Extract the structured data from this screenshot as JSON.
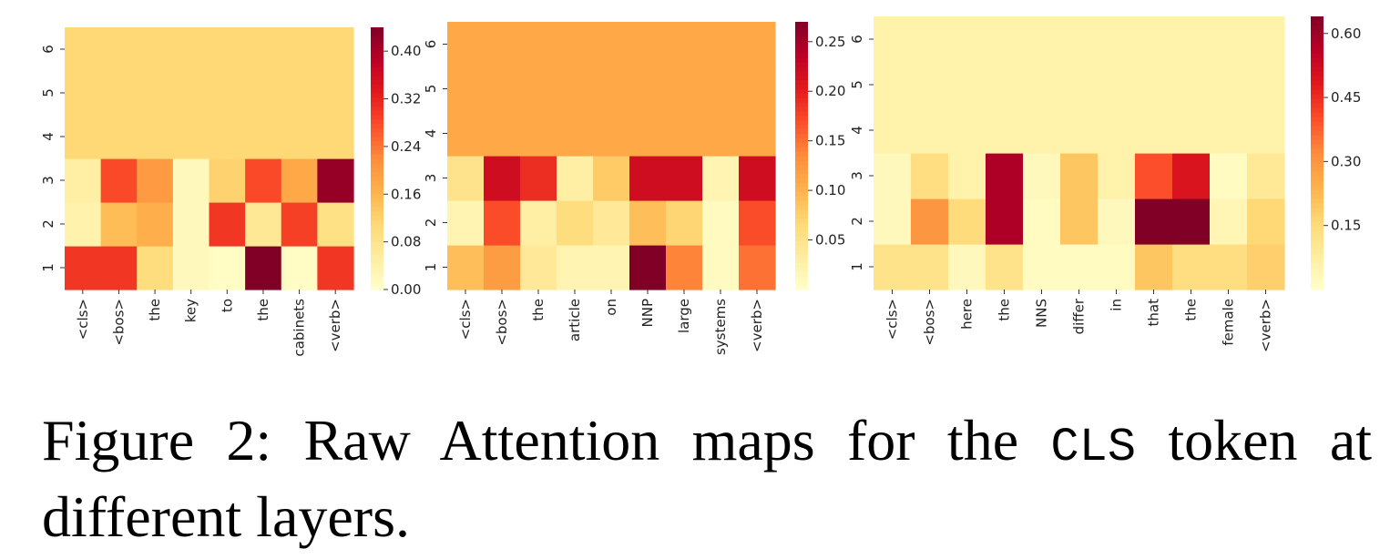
{
  "chart_data": [
    {
      "type": "heatmap",
      "x_tokens": [
        "<cls>",
        "<bos>",
        "the",
        "key",
        "to",
        "the",
        "cabinets",
        "<verb>"
      ],
      "y_layers": [
        "1",
        "2",
        "3",
        "4",
        "5",
        "6"
      ],
      "values": [
        [
          0.3,
          0.3,
          0.1,
          0.02,
          0.01,
          0.44,
          0.01,
          0.3
        ],
        [
          0.04,
          0.15,
          0.17,
          0.02,
          0.3,
          0.07,
          0.29,
          0.09
        ],
        [
          0.05,
          0.28,
          0.2,
          0.02,
          0.12,
          0.28,
          0.18,
          0.42
        ],
        [
          0.11,
          0.11,
          0.11,
          0.11,
          0.11,
          0.11,
          0.11,
          0.11
        ],
        [
          0.11,
          0.11,
          0.11,
          0.11,
          0.11,
          0.11,
          0.11,
          0.11
        ],
        [
          0.11,
          0.11,
          0.11,
          0.11,
          0.11,
          0.11,
          0.11,
          0.11
        ]
      ],
      "colormap": "YlOrRd",
      "vmin": 0.0,
      "vmax": 0.44,
      "colorbar_ticks": [
        "0.00",
        "0.08",
        "0.16",
        "0.24",
        "0.32",
        "0.40"
      ],
      "colorbar_values": [
        0.0,
        0.08,
        0.16,
        0.24,
        0.32,
        0.4
      ]
    },
    {
      "type": "heatmap",
      "x_tokens": [
        "<cls>",
        "<bos>",
        "the",
        "article",
        "on",
        "NNP",
        "large",
        "systems",
        "<verb>"
      ],
      "y_layers": [
        "1",
        "2",
        "3",
        "4",
        "5",
        "6"
      ],
      "values": [
        [
          0.09,
          0.12,
          0.04,
          0.02,
          0.02,
          0.27,
          0.14,
          0.01,
          0.15
        ],
        [
          0.02,
          0.17,
          0.03,
          0.06,
          0.04,
          0.09,
          0.07,
          0.01,
          0.17
        ],
        [
          0.05,
          0.22,
          0.19,
          0.03,
          0.08,
          0.22,
          0.22,
          0.02,
          0.22
        ],
        [
          0.11,
          0.11,
          0.11,
          0.11,
          0.11,
          0.11,
          0.11,
          0.11,
          0.11
        ],
        [
          0.11,
          0.11,
          0.11,
          0.11,
          0.11,
          0.11,
          0.11,
          0.11,
          0.11
        ],
        [
          0.11,
          0.11,
          0.11,
          0.11,
          0.11,
          0.11,
          0.11,
          0.11,
          0.11
        ]
      ],
      "colormap": "YlOrRd",
      "vmin": 0.0,
      "vmax": 0.27,
      "colorbar_ticks": [
        "0.05",
        "0.10",
        "0.15",
        "0.20",
        "0.25"
      ],
      "colorbar_values": [
        0.05,
        0.1,
        0.15,
        0.2,
        0.25
      ]
    },
    {
      "type": "heatmap",
      "x_tokens": [
        "<cls>",
        "<bos>",
        "here",
        "the",
        "NNS",
        "differ",
        "in",
        "that",
        "the",
        "female",
        "<verb>"
      ],
      "y_layers": [
        "1",
        "2",
        "3",
        "4",
        "5",
        "6"
      ],
      "values": [
        [
          0.12,
          0.12,
          0.03,
          0.12,
          0.02,
          0.02,
          0.02,
          0.2,
          0.14,
          0.14,
          0.18
        ],
        [
          0.03,
          0.3,
          0.15,
          0.58,
          0.02,
          0.2,
          0.03,
          0.64,
          0.64,
          0.04,
          0.16
        ],
        [
          0.03,
          0.14,
          0.06,
          0.58,
          0.03,
          0.2,
          0.06,
          0.4,
          0.5,
          0.02,
          0.1
        ],
        [
          0.06,
          0.06,
          0.06,
          0.06,
          0.06,
          0.06,
          0.06,
          0.06,
          0.06,
          0.06,
          0.06
        ],
        [
          0.06,
          0.06,
          0.06,
          0.06,
          0.06,
          0.06,
          0.06,
          0.06,
          0.06,
          0.06,
          0.06
        ],
        [
          0.06,
          0.06,
          0.06,
          0.06,
          0.06,
          0.06,
          0.06,
          0.06,
          0.06,
          0.06,
          0.06
        ]
      ],
      "colormap": "YlOrRd",
      "vmin": 0.0,
      "vmax": 0.64,
      "colorbar_ticks": [
        "0.15",
        "0.30",
        "0.45",
        "0.60"
      ],
      "colorbar_values": [
        0.15,
        0.3,
        0.45,
        0.6
      ]
    }
  ],
  "caption": {
    "prefix": "Figure 2: Raw Attention maps for the ",
    "token": "CLS",
    "suffix": " token at different layers."
  }
}
